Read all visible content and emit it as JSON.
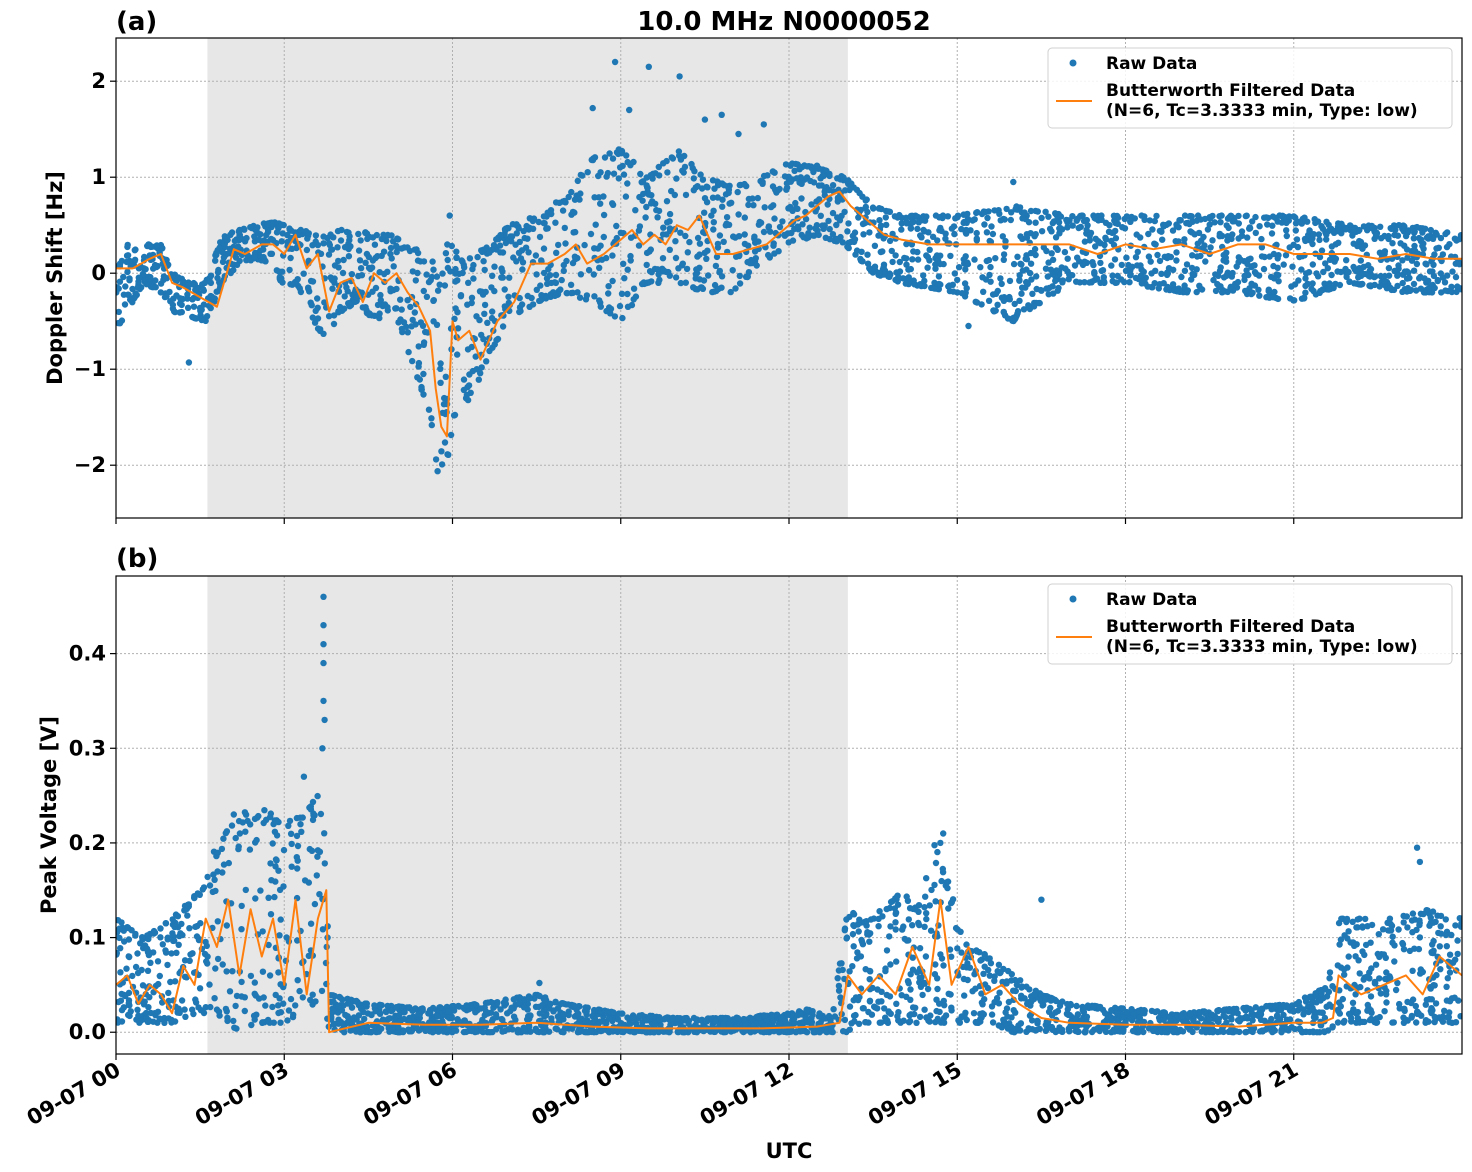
{
  "figure": {
    "title": "10.0 MHz N0000052",
    "xlabel": "UTC",
    "x_tick_labels": [
      "09-07 00",
      "09-07 03",
      "09-07 06",
      "09-07 09",
      "09-07 12",
      "09-07 15",
      "09-07 18",
      "09-07 21"
    ]
  },
  "colors": {
    "raw": "#1f77b4",
    "filtered": "#ff7f0e",
    "shade": "#e7e7e7",
    "grid": "#b0b0b0"
  },
  "chart_data": [
    {
      "panel_label": "(a)",
      "type": "scatter",
      "ylabel": "Doppler Shift [Hz]",
      "x_unit": "hours UTC on 09-07",
      "xlim": [
        0,
        24
      ],
      "ylim": [
        -2.55,
        2.45
      ],
      "y_ticks": [
        -2,
        -1,
        0,
        1,
        2
      ],
      "y_tick_labels": [
        "−2",
        "−1",
        "0",
        "1",
        "2"
      ],
      "shaded_span_hours": [
        1.63,
        13.05
      ],
      "grid": true,
      "legend": {
        "position": "top-right",
        "entries": [
          "Raw Data",
          "Butterworth Filtered Data\n(N=6, Tc=3.3333 min, Type: low)"
        ]
      },
      "series": [
        {
          "name": "Raw Data",
          "kind": "band",
          "x": [
            0,
            0.5,
            0.8,
            1.0,
            1.3,
            1.6,
            1.9,
            2.2,
            2.5,
            2.8,
            3.0,
            3.2,
            3.4,
            3.6,
            3.8,
            4.0,
            4.3,
            4.6,
            4.9,
            5.2,
            5.5,
            5.7,
            5.8,
            5.9,
            6.0,
            6.2,
            6.4,
            6.7,
            7.0,
            7.5,
            8.0,
            8.5,
            9.0,
            9.5,
            10.0,
            10.5,
            11.0,
            11.5,
            12.0,
            12.5,
            13.0,
            13.5,
            14.0,
            15.0,
            16.0,
            17.0,
            18.0,
            19.0,
            20.0,
            21.0,
            22.0,
            23.0,
            24.0
          ],
          "lo": [
            -0.6,
            -0.1,
            -0.2,
            -0.4,
            -0.45,
            -0.5,
            -0.1,
            0.1,
            0.15,
            0.1,
            -0.2,
            -0.1,
            -0.3,
            -0.6,
            -0.7,
            -0.4,
            -0.3,
            -0.5,
            -0.4,
            -0.8,
            -1.3,
            -2.0,
            -2.3,
            -2.0,
            -1.6,
            -1.4,
            -1.2,
            -0.8,
            -0.5,
            -0.3,
            -0.2,
            -0.3,
            -0.5,
            -0.1,
            -0.1,
            -0.2,
            -0.2,
            0.1,
            0.3,
            0.4,
            0.3,
            0.0,
            -0.1,
            -0.2,
            -0.5,
            -0.1,
            -0.1,
            -0.2,
            -0.2,
            -0.3,
            -0.1,
            -0.2,
            -0.2
          ],
          "hi": [
            0.3,
            0.3,
            0.3,
            0.0,
            -0.1,
            -0.1,
            0.4,
            0.45,
            0.5,
            0.55,
            0.5,
            0.45,
            0.45,
            0.4,
            0.4,
            0.45,
            0.45,
            0.4,
            0.4,
            0.3,
            0.2,
            0.1,
            0.0,
            0.3,
            0.3,
            0.1,
            0.2,
            0.3,
            0.5,
            0.6,
            0.8,
            1.2,
            1.3,
            1.0,
            1.3,
            1.0,
            0.9,
            1.0,
            1.15,
            1.1,
            1.0,
            0.7,
            0.6,
            0.6,
            0.7,
            0.6,
            0.6,
            0.6,
            0.6,
            0.6,
            0.5,
            0.5,
            0.4
          ],
          "outliers": [
            [
              5.95,
              0.6
            ],
            [
              8.5,
              1.72
            ],
            [
              8.9,
              2.2
            ],
            [
              9.15,
              1.7
            ],
            [
              9.5,
              2.15
            ],
            [
              10.05,
              2.05
            ],
            [
              10.5,
              1.6
            ],
            [
              10.8,
              1.65
            ],
            [
              11.1,
              1.45
            ],
            [
              11.55,
              1.55
            ],
            [
              1.3,
              -0.93
            ],
            [
              16.0,
              0.95
            ],
            [
              15.2,
              -0.55
            ],
            [
              12.5,
              1.12
            ]
          ]
        },
        {
          "name": "Butterworth Filtered Data\n(N=6, Tc=3.3333 min, Type: low)",
          "x": [
            0,
            0.3,
            0.6,
            0.8,
            1.0,
            1.2,
            1.5,
            1.8,
            2.1,
            2.3,
            2.6,
            2.8,
            3.0,
            3.2,
            3.4,
            3.6,
            3.8,
            4.0,
            4.2,
            4.4,
            4.6,
            4.8,
            5.0,
            5.2,
            5.4,
            5.6,
            5.7,
            5.8,
            5.9,
            6.0,
            6.1,
            6.3,
            6.5,
            6.8,
            7.1,
            7.4,
            7.7,
            8.0,
            8.2,
            8.4,
            8.7,
            9.0,
            9.2,
            9.4,
            9.6,
            9.8,
            10.0,
            10.2,
            10.4,
            10.7,
            11.0,
            11.3,
            11.6,
            11.9,
            12.1,
            12.3,
            12.5,
            12.7,
            12.9,
            13.1,
            13.4,
            13.7,
            14.0,
            14.5,
            15.0,
            15.5,
            16.0,
            16.5,
            17.0,
            17.5,
            18.0,
            18.5,
            19.0,
            19.5,
            20.0,
            20.5,
            21.0,
            21.5,
            22.0,
            22.5,
            23.0,
            23.5,
            24.0
          ],
          "y": [
            0.05,
            0.05,
            0.15,
            0.2,
            -0.1,
            -0.15,
            -0.25,
            -0.35,
            0.25,
            0.2,
            0.3,
            0.3,
            0.2,
            0.4,
            0.05,
            0.2,
            -0.4,
            -0.1,
            -0.05,
            -0.3,
            0.0,
            -0.1,
            0.0,
            -0.2,
            -0.35,
            -0.6,
            -1.2,
            -1.6,
            -1.7,
            -0.5,
            -0.7,
            -0.6,
            -0.9,
            -0.5,
            -0.3,
            0.1,
            0.1,
            0.2,
            0.3,
            0.1,
            0.2,
            0.35,
            0.45,
            0.3,
            0.4,
            0.3,
            0.5,
            0.45,
            0.6,
            0.2,
            0.2,
            0.25,
            0.3,
            0.45,
            0.55,
            0.6,
            0.7,
            0.8,
            0.85,
            0.7,
            0.55,
            0.4,
            0.35,
            0.3,
            0.3,
            0.3,
            0.3,
            0.3,
            0.3,
            0.2,
            0.3,
            0.25,
            0.3,
            0.2,
            0.3,
            0.3,
            0.2,
            0.2,
            0.2,
            0.15,
            0.2,
            0.15,
            0.15
          ]
        }
      ]
    },
    {
      "panel_label": "(b)",
      "type": "scatter",
      "ylabel": "Peak Voltage [V]",
      "x_unit": "hours UTC on 09-07",
      "xlim": [
        0,
        24
      ],
      "ylim": [
        -0.023,
        0.482
      ],
      "y_ticks": [
        0.0,
        0.1,
        0.2,
        0.3,
        0.4
      ],
      "y_tick_labels": [
        "0.0",
        "0.1",
        "0.2",
        "0.3",
        "0.4"
      ],
      "shaded_span_hours": [
        1.63,
        13.05
      ],
      "grid": true,
      "legend": {
        "position": "top-right",
        "entries": [
          "Raw Data",
          "Butterworth Filtered Data\n(N=6, Tc=3.3333 min, Type: low)"
        ]
      },
      "series": [
        {
          "name": "Raw Data",
          "kind": "band",
          "x": [
            0,
            0.5,
            1.0,
            1.5,
            1.8,
            2.2,
            2.6,
            3.0,
            3.3,
            3.6,
            3.75,
            3.8,
            4.5,
            5.5,
            6.5,
            7.5,
            8.0,
            9.0,
            10.0,
            11.0,
            12.0,
            12.8,
            13.05,
            13.3,
            13.7,
            14.0,
            14.3,
            14.6,
            14.9,
            15.2,
            15.6,
            16.0,
            16.5,
            17.0,
            18.0,
            19.0,
            20.0,
            21.0,
            21.6,
            21.8,
            22.3,
            22.8,
            23.3,
            24.0
          ],
          "lo": [
            0.01,
            0.01,
            0.01,
            0.02,
            0.02,
            0.0,
            0.01,
            0.01,
            0.02,
            0.03,
            0.02,
            0.0,
            0.0,
            0.0,
            0.0,
            0.0,
            0.0,
            0.0,
            0.0,
            0.0,
            0.0,
            0.0,
            0.0,
            0.01,
            0.01,
            0.01,
            0.01,
            0.01,
            0.01,
            0.01,
            0.01,
            0.0,
            0.0,
            0.0,
            0.0,
            0.0,
            0.0,
            0.0,
            0.0,
            0.01,
            0.01,
            0.01,
            0.01,
            0.01
          ],
          "hi": [
            0.12,
            0.1,
            0.12,
            0.15,
            0.2,
            0.23,
            0.24,
            0.22,
            0.23,
            0.25,
            0.2,
            0.04,
            0.03,
            0.025,
            0.03,
            0.04,
            0.03,
            0.02,
            0.015,
            0.015,
            0.02,
            0.03,
            0.13,
            0.12,
            0.13,
            0.15,
            0.13,
            0.2,
            0.15,
            0.09,
            0.08,
            0.06,
            0.04,
            0.03,
            0.025,
            0.02,
            0.025,
            0.03,
            0.05,
            0.12,
            0.12,
            0.12,
            0.13,
            0.12
          ],
          "outliers": [
            [
              3.7,
              0.46
            ],
            [
              3.7,
              0.43
            ],
            [
              3.7,
              0.41
            ],
            [
              3.7,
              0.39
            ],
            [
              3.72,
              0.33
            ],
            [
              3.68,
              0.3
            ],
            [
              3.7,
              0.35
            ],
            [
              3.35,
              0.27
            ],
            [
              14.75,
              0.21
            ],
            [
              14.7,
              0.2
            ],
            [
              23.2,
              0.195
            ],
            [
              23.25,
              0.18
            ],
            [
              2.1,
              0.23
            ],
            [
              7.55,
              0.052
            ],
            [
              16.5,
              0.14
            ]
          ]
        },
        {
          "name": "Butterworth Filtered Data\n(N=6, Tc=3.3333 min, Type: low)",
          "x": [
            0,
            0.2,
            0.4,
            0.6,
            0.8,
            1.0,
            1.2,
            1.4,
            1.6,
            1.8,
            2.0,
            2.2,
            2.4,
            2.6,
            2.8,
            3.0,
            3.2,
            3.4,
            3.6,
            3.75,
            3.8,
            4.5,
            5.5,
            6.5,
            7.5,
            8.5,
            9.5,
            10.5,
            11.5,
            12.5,
            12.9,
            13.05,
            13.3,
            13.6,
            13.9,
            14.2,
            14.5,
            14.7,
            14.9,
            15.2,
            15.5,
            15.8,
            16.1,
            16.5,
            17.0,
            18.0,
            19.0,
            20.0,
            21.0,
            21.5,
            21.7,
            21.8,
            22.2,
            22.6,
            23.0,
            23.3,
            23.6,
            24.0
          ],
          "y": [
            0.05,
            0.06,
            0.03,
            0.05,
            0.04,
            0.02,
            0.07,
            0.05,
            0.12,
            0.09,
            0.14,
            0.06,
            0.13,
            0.08,
            0.12,
            0.05,
            0.14,
            0.04,
            0.12,
            0.15,
            0.0,
            0.01,
            0.008,
            0.008,
            0.01,
            0.006,
            0.004,
            0.004,
            0.004,
            0.006,
            0.01,
            0.06,
            0.04,
            0.06,
            0.04,
            0.09,
            0.05,
            0.14,
            0.05,
            0.09,
            0.04,
            0.05,
            0.03,
            0.015,
            0.01,
            0.008,
            0.008,
            0.006,
            0.01,
            0.01,
            0.015,
            0.06,
            0.04,
            0.05,
            0.06,
            0.04,
            0.08,
            0.06
          ]
        }
      ]
    }
  ]
}
